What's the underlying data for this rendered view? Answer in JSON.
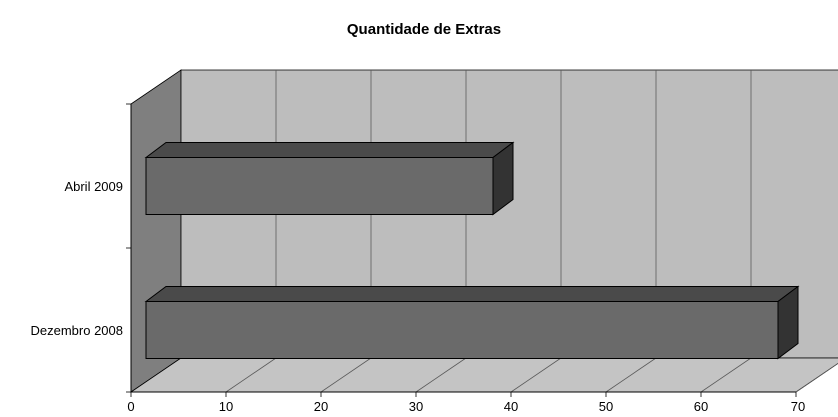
{
  "chart_data": {
    "type": "bar",
    "orientation": "horizontal",
    "style": "3d",
    "title": "Quantidade de Extras",
    "categories": [
      "Abril 2009",
      "Dezembro 2008"
    ],
    "values": [
      40,
      70
    ],
    "xlim": [
      0,
      70
    ],
    "xticks": [
      "0",
      "10",
      "20",
      "30",
      "40",
      "50",
      "60",
      "70"
    ],
    "grid": true,
    "legend": "none",
    "colors": {
      "back_wall": "#bdbdbd",
      "side_wall": "#7f7f7f",
      "floor": "#c4c4c4",
      "bar_front": "#6a6a6a",
      "bar_top": "#4a4a4a",
      "bar_side": "#333333",
      "grid": "#5a5a5a"
    }
  }
}
